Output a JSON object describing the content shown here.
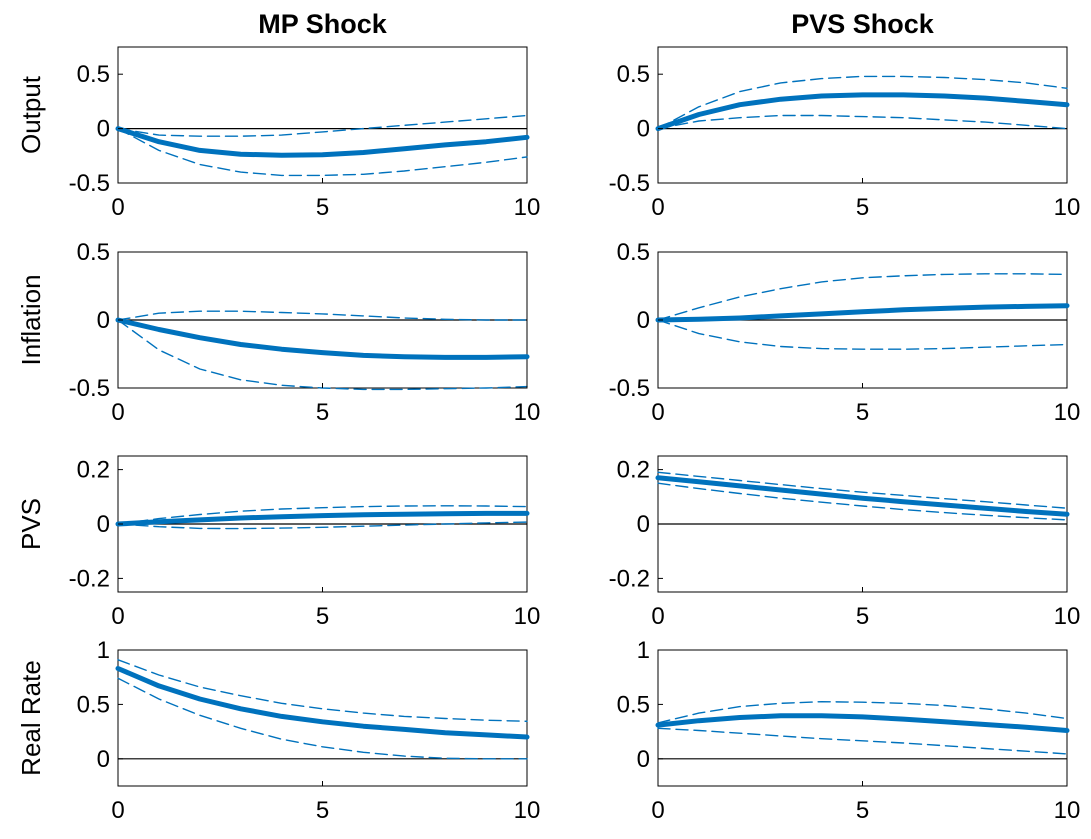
{
  "figure": {
    "columns": [
      "MP Shock",
      "PVS Shock"
    ],
    "rows": [
      "Output",
      "Inflation",
      "PVS",
      "Real Rate"
    ],
    "colors": {
      "line": "#0072BD",
      "zero_line": "#000000",
      "axes": "#000000"
    }
  },
  "chart_data": [
    {
      "type": "line",
      "panel": "Output / MP Shock",
      "xlim": [
        0,
        10
      ],
      "ylim": [
        -0.5,
        0.75
      ],
      "xticks": [
        "0",
        "5",
        "10"
      ],
      "yticks": [
        "0.5",
        "0",
        "-0.5"
      ],
      "grid": false,
      "x": [
        0,
        1,
        2,
        3,
        4,
        5,
        6,
        7,
        8,
        9,
        10
      ],
      "series": [
        {
          "role": "estimate",
          "values": [
            0,
            -0.12,
            -0.2,
            -0.235,
            -0.245,
            -0.24,
            -0.22,
            -0.185,
            -0.15,
            -0.12,
            -0.08
          ]
        },
        {
          "role": "upper",
          "values": [
            0,
            -0.06,
            -0.07,
            -0.07,
            -0.06,
            -0.03,
            0.0,
            0.03,
            0.06,
            0.09,
            0.12
          ]
        },
        {
          "role": "lower",
          "values": [
            0,
            -0.2,
            -0.33,
            -0.4,
            -0.43,
            -0.43,
            -0.42,
            -0.39,
            -0.35,
            -0.31,
            -0.26
          ]
        }
      ]
    },
    {
      "type": "line",
      "panel": "Output / PVS Shock",
      "xlim": [
        0,
        10
      ],
      "ylim": [
        -0.5,
        0.75
      ],
      "xticks": [
        "0",
        "5",
        "10"
      ],
      "yticks": [
        "0.5",
        "0",
        "-0.5"
      ],
      "grid": false,
      "x": [
        0,
        1,
        2,
        3,
        4,
        5,
        6,
        7,
        8,
        9,
        10
      ],
      "series": [
        {
          "role": "estimate",
          "values": [
            0,
            0.13,
            0.22,
            0.27,
            0.3,
            0.31,
            0.31,
            0.3,
            0.28,
            0.25,
            0.22
          ]
        },
        {
          "role": "upper",
          "values": [
            0,
            0.2,
            0.34,
            0.42,
            0.46,
            0.48,
            0.48,
            0.47,
            0.45,
            0.42,
            0.37
          ]
        },
        {
          "role": "lower",
          "values": [
            0,
            0.07,
            0.1,
            0.12,
            0.12,
            0.11,
            0.1,
            0.08,
            0.06,
            0.03,
            0.0
          ]
        }
      ]
    },
    {
      "type": "line",
      "panel": "Inflation / MP Shock",
      "xlim": [
        0,
        10
      ],
      "ylim": [
        -0.5,
        0.5
      ],
      "xticks": [
        "0",
        "5",
        "10"
      ],
      "yticks": [
        "0.5",
        "0",
        "-0.5"
      ],
      "grid": false,
      "x": [
        0,
        1,
        2,
        3,
        4,
        5,
        6,
        7,
        8,
        9,
        10
      ],
      "series": [
        {
          "role": "estimate",
          "values": [
            0,
            -0.07,
            -0.13,
            -0.18,
            -0.215,
            -0.24,
            -0.26,
            -0.27,
            -0.275,
            -0.275,
            -0.27
          ]
        },
        {
          "role": "upper",
          "values": [
            0,
            0.05,
            0.065,
            0.065,
            0.055,
            0.045,
            0.03,
            0.015,
            0.005,
            0.0,
            0.0
          ]
        },
        {
          "role": "lower",
          "values": [
            0,
            -0.22,
            -0.36,
            -0.44,
            -0.48,
            -0.5,
            -0.51,
            -0.51,
            -0.505,
            -0.5,
            -0.49
          ]
        }
      ]
    },
    {
      "type": "line",
      "panel": "Inflation / PVS Shock",
      "xlim": [
        0,
        10
      ],
      "ylim": [
        -0.5,
        0.5
      ],
      "xticks": [
        "0",
        "5",
        "10"
      ],
      "yticks": [
        "0.5",
        "0",
        "-0.5"
      ],
      "grid": false,
      "x": [
        0,
        1,
        2,
        3,
        4,
        5,
        6,
        7,
        8,
        9,
        10
      ],
      "series": [
        {
          "role": "estimate",
          "values": [
            0,
            0.005,
            0.015,
            0.03,
            0.045,
            0.06,
            0.075,
            0.085,
            0.095,
            0.1,
            0.105
          ]
        },
        {
          "role": "upper",
          "values": [
            0,
            0.09,
            0.17,
            0.23,
            0.28,
            0.31,
            0.325,
            0.335,
            0.34,
            0.34,
            0.335
          ]
        },
        {
          "role": "lower",
          "values": [
            0,
            -0.1,
            -0.16,
            -0.195,
            -0.21,
            -0.215,
            -0.215,
            -0.21,
            -0.2,
            -0.19,
            -0.18
          ]
        }
      ]
    },
    {
      "type": "line",
      "panel": "PVS / MP Shock",
      "xlim": [
        0,
        10
      ],
      "ylim": [
        -0.25,
        0.25
      ],
      "xticks": [
        "0",
        "5",
        "10"
      ],
      "yticks": [
        "0.2",
        "0",
        "-0.2"
      ],
      "grid": false,
      "x": [
        0,
        1,
        2,
        3,
        4,
        5,
        6,
        7,
        8,
        9,
        10
      ],
      "series": [
        {
          "role": "estimate",
          "values": [
            0,
            0.008,
            0.015,
            0.022,
            0.027,
            0.031,
            0.034,
            0.036,
            0.038,
            0.039,
            0.039
          ]
        },
        {
          "role": "upper",
          "values": [
            0,
            0.02,
            0.035,
            0.047,
            0.055,
            0.06,
            0.064,
            0.066,
            0.067,
            0.066,
            0.064
          ]
        },
        {
          "role": "lower",
          "values": [
            0,
            -0.01,
            -0.016,
            -0.017,
            -0.015,
            -0.012,
            -0.008,
            -0.004,
            0.0,
            0.004,
            0.007
          ]
        }
      ]
    },
    {
      "type": "line",
      "panel": "PVS / PVS Shock",
      "xlim": [
        0,
        10
      ],
      "ylim": [
        -0.25,
        0.25
      ],
      "xticks": [
        "0",
        "5",
        "10"
      ],
      "yticks": [
        "0.2",
        "0",
        "-0.2"
      ],
      "grid": false,
      "x": [
        0,
        1,
        2,
        3,
        4,
        5,
        6,
        7,
        8,
        9,
        10
      ],
      "series": [
        {
          "role": "estimate",
          "values": [
            0.17,
            0.155,
            0.14,
            0.125,
            0.11,
            0.095,
            0.082,
            0.07,
            0.058,
            0.046,
            0.036
          ]
        },
        {
          "role": "upper",
          "values": [
            0.19,
            0.175,
            0.16,
            0.145,
            0.13,
            0.117,
            0.105,
            0.093,
            0.082,
            0.07,
            0.058
          ]
        },
        {
          "role": "lower",
          "values": [
            0.15,
            0.13,
            0.112,
            0.095,
            0.08,
            0.066,
            0.053,
            0.042,
            0.032,
            0.023,
            0.015
          ]
        }
      ]
    },
    {
      "type": "line",
      "panel": "Real Rate / MP Shock",
      "xlim": [
        0,
        10
      ],
      "ylim": [
        -0.25,
        1.0
      ],
      "xticks": [
        "0",
        "5",
        "10"
      ],
      "yticks": [
        "1",
        "0.5",
        "0"
      ],
      "grid": false,
      "x": [
        0,
        1,
        2,
        3,
        4,
        5,
        6,
        7,
        8,
        9,
        10
      ],
      "series": [
        {
          "role": "estimate",
          "values": [
            0.83,
            0.67,
            0.55,
            0.46,
            0.39,
            0.34,
            0.3,
            0.27,
            0.24,
            0.22,
            0.2
          ]
        },
        {
          "role": "upper",
          "values": [
            0.91,
            0.77,
            0.66,
            0.58,
            0.51,
            0.46,
            0.42,
            0.39,
            0.37,
            0.355,
            0.345
          ]
        },
        {
          "role": "lower",
          "values": [
            0.74,
            0.55,
            0.4,
            0.28,
            0.18,
            0.11,
            0.06,
            0.025,
            0.005,
            0.0,
            0.0
          ]
        }
      ]
    },
    {
      "type": "line",
      "panel": "Real Rate / PVS Shock",
      "xlim": [
        0,
        10
      ],
      "ylim": [
        -0.25,
        1.0
      ],
      "xticks": [
        "0",
        "5",
        "10"
      ],
      "yticks": [
        "1",
        "0.5",
        "0"
      ],
      "grid": false,
      "x": [
        0,
        1,
        2,
        3,
        4,
        5,
        6,
        7,
        8,
        9,
        10
      ],
      "series": [
        {
          "role": "estimate",
          "values": [
            0.31,
            0.35,
            0.38,
            0.395,
            0.395,
            0.385,
            0.365,
            0.34,
            0.315,
            0.29,
            0.26
          ]
        },
        {
          "role": "upper",
          "values": [
            0.33,
            0.42,
            0.48,
            0.51,
            0.525,
            0.52,
            0.51,
            0.49,
            0.46,
            0.42,
            0.37
          ]
        },
        {
          "role": "lower",
          "values": [
            0.28,
            0.26,
            0.235,
            0.21,
            0.185,
            0.165,
            0.145,
            0.12,
            0.095,
            0.07,
            0.045
          ]
        }
      ]
    }
  ]
}
